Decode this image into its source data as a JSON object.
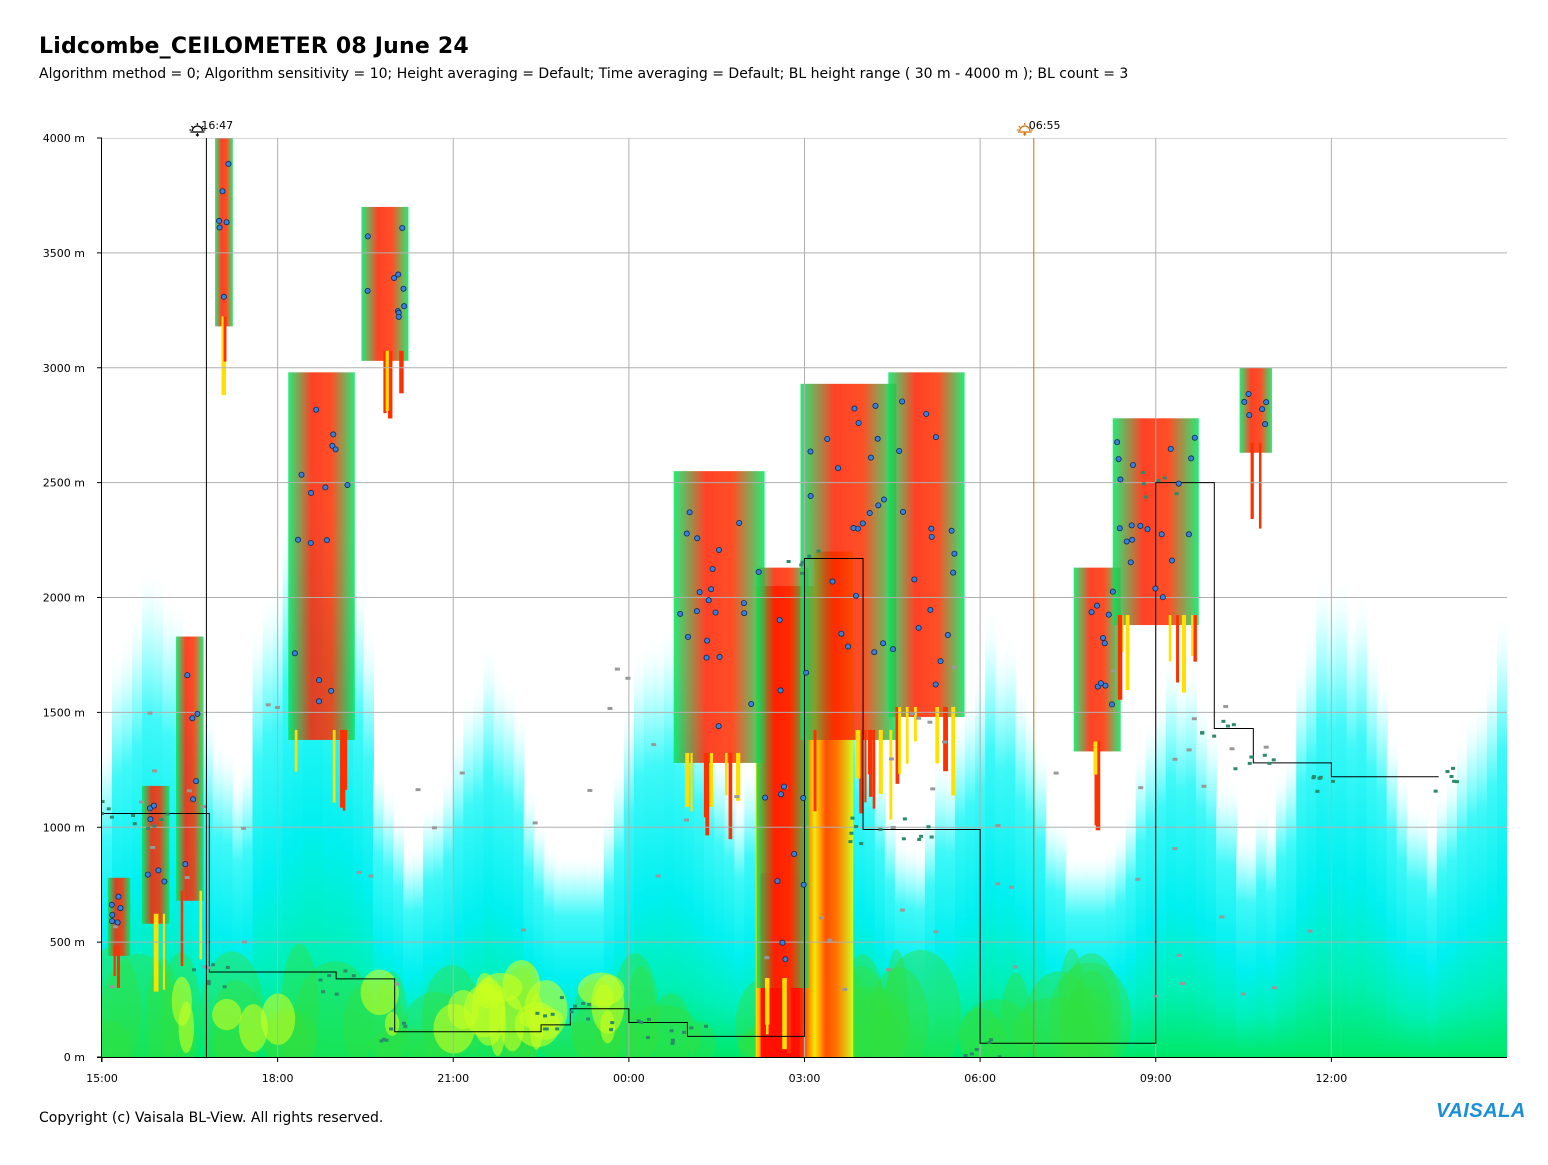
{
  "header": {
    "title": "Lidcombe_CEILOMETER 08 June 24",
    "subtitle": "Algorithm method = 0; Algorithm sensitivity = 10; Height averaging = Default; Time averaging = Default; BL height range ( 30 m - 4000 m ); BL count = 3"
  },
  "footer": {
    "copyright": "Copyright (c) Vaisala BL-View. All rights reserved.",
    "logo_text": "VAISALA"
  },
  "colors": {
    "background_signal": "#00f0f0",
    "mid_signal": "#00e040",
    "high_signal": "#ffff00",
    "peak_signal": "#ff2000",
    "cloud_marker": "#3a7fd8",
    "bl_marker": "#2a8a6a",
    "gridline": "#b0b0b0",
    "sunset_line": "#000000",
    "sunrise_line": "#d07010",
    "logo": "#1c8fd8"
  },
  "chart_data": {
    "type": "heatmap",
    "title": "Lidcombe_CEILOMETER 08 June 24",
    "x_start": "15:00",
    "x_end": "15:00 (+24 h)",
    "x_ticks": [
      "15:00",
      "18:00",
      "21:00",
      "00:00",
      "03:00",
      "06:00",
      "09:00",
      "12:00"
    ],
    "y_unit": "m",
    "ylim": [
      0,
      4000
    ],
    "y_ticks": [
      "0 m",
      "500 m",
      "1000 m",
      "1500 m",
      "2000 m",
      "2500 m",
      "3000 m",
      "3500 m",
      "4000 m"
    ],
    "grid": true,
    "sun_events": [
      {
        "name": "sunset",
        "time": "16:47",
        "label": "16:47",
        "icon": "sunset-icon"
      },
      {
        "name": "sunrise",
        "time": "06:55",
        "label": "06:55",
        "icon": "sunrise-icon"
      }
    ],
    "bl_height_step": [
      {
        "time": "15:00",
        "height": 1060
      },
      {
        "time": "15:45",
        "height": 1060
      },
      {
        "time": "16:50",
        "height": 370
      },
      {
        "time": "19:00",
        "height": 340
      },
      {
        "time": "20:00",
        "height": 110
      },
      {
        "time": "22:30",
        "height": 140
      },
      {
        "time": "23:00",
        "height": 210
      },
      {
        "time": "00:00",
        "height": 150
      },
      {
        "time": "01:00",
        "height": 90
      },
      {
        "time": "03:00",
        "height": 2170
      },
      {
        "time": "04:00",
        "height": 990
      },
      {
        "time": "05:00",
        "height": 990
      },
      {
        "time": "06:00",
        "height": 60
      },
      {
        "time": "09:00",
        "height": 2500
      },
      {
        "time": "10:00",
        "height": 1430
      },
      {
        "time": "10:40",
        "height": 1280
      },
      {
        "time": "12:00",
        "height": 1220
      },
      {
        "time": "13:50",
        "height": 1220
      }
    ],
    "cloud_base_clusters": [
      {
        "time_start": "15:10",
        "time_end": "15:25",
        "height_min": 560,
        "height_max": 700
      },
      {
        "time_start": "15:45",
        "time_end": "16:05",
        "height_min": 700,
        "height_max": 1100
      },
      {
        "time_start": "16:20",
        "time_end": "16:40",
        "height_min": 800,
        "height_max": 1750
      },
      {
        "time_start": "17:00",
        "time_end": "17:10",
        "height_min": 3300,
        "height_max": 3950
      },
      {
        "time_start": "18:15",
        "time_end": "19:15",
        "height_min": 1500,
        "height_max": 2900
      },
      {
        "time_start": "19:30",
        "time_end": "20:10",
        "height_min": 3150,
        "height_max": 3620
      },
      {
        "time_start": "00:50",
        "time_end": "02:15",
        "height_min": 1400,
        "height_max": 2470
      },
      {
        "time_start": "02:15",
        "time_end": "03:00",
        "height_min": 420,
        "height_max": 2050
      },
      {
        "time_start": "03:00",
        "time_end": "04:30",
        "height_min": 1500,
        "height_max": 2850
      },
      {
        "time_start": "04:30",
        "time_end": "05:40",
        "height_min": 1600,
        "height_max": 2900
      },
      {
        "time_start": "07:40",
        "time_end": "08:20",
        "height_min": 1450,
        "height_max": 2050
      },
      {
        "time_start": "08:20",
        "time_end": "09:40",
        "height_min": 2000,
        "height_max": 2700
      },
      {
        "time_start": "10:30",
        "time_end": "10:55",
        "height_min": 2750,
        "height_max": 2920
      }
    ]
  }
}
